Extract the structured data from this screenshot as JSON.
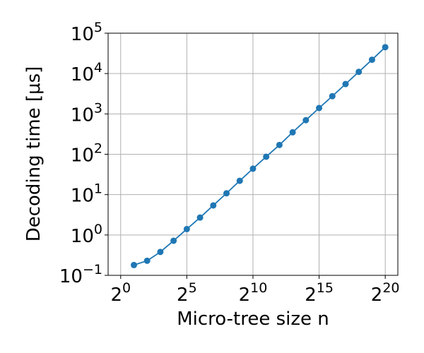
{
  "chart_data": {
    "type": "line",
    "x_label": "Micro-tree size n",
    "y_label": "Decoding time [μs]",
    "x": [
      2,
      4,
      8,
      16,
      32,
      64,
      128,
      256,
      512,
      1024,
      2048,
      4096,
      8192,
      16384,
      32768,
      65536,
      131072,
      262144,
      524288,
      1048576
    ],
    "series": [
      {
        "name": "Decoding time",
        "color": "#1f77b4",
        "values": [
          0.18,
          0.23,
          0.38,
          0.72,
          1.4,
          2.7,
          5.4,
          10.8,
          22,
          44,
          87,
          170,
          350,
          700,
          1400,
          2750,
          5500,
          11000,
          22000,
          45000
        ]
      }
    ],
    "xscale": "log2",
    "yscale": "log10",
    "xlim": [
      0.518,
      2030000
    ],
    "ylim": [
      0.1,
      100000
    ],
    "xticks": [
      {
        "value": 1,
        "label": "2^0"
      },
      {
        "value": 32,
        "label": "2^5"
      },
      {
        "value": 1024,
        "label": "2^10"
      },
      {
        "value": 32768,
        "label": "2^15"
      },
      {
        "value": 1048576,
        "label": "2^20"
      }
    ],
    "yticks": [
      {
        "value": 0.1,
        "label": "10^−1"
      },
      {
        "value": 1,
        "label": "10^0"
      },
      {
        "value": 10,
        "label": "10^1"
      },
      {
        "value": 100,
        "label": "10^2"
      },
      {
        "value": 1000,
        "label": "10^3"
      },
      {
        "value": 10000,
        "label": "10^4"
      },
      {
        "value": 100000,
        "label": "10^5"
      }
    ],
    "grid": true
  }
}
